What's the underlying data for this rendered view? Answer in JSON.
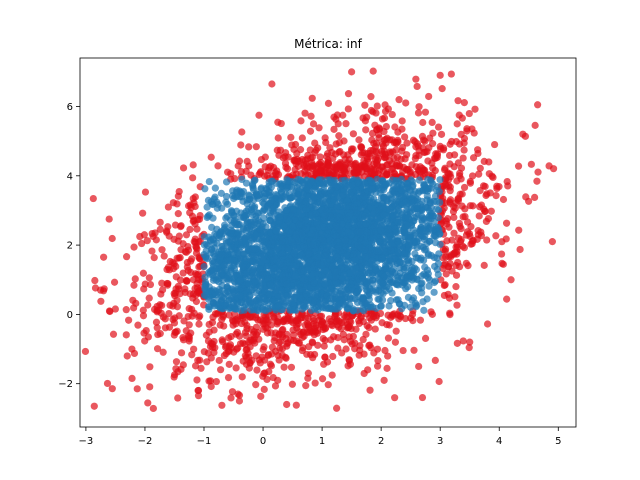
{
  "chart_data": {
    "type": "scatter",
    "title": "Métrica: inf",
    "xlabel": "",
    "ylabel": "",
    "xlim": [
      -3.1,
      5.3
    ],
    "ylim": [
      -3.25,
      7.4
    ],
    "x_ticks": [
      -3,
      -2,
      -1,
      0,
      1,
      2,
      3,
      4,
      5
    ],
    "y_ticks": [
      -2,
      0,
      2,
      4,
      6
    ],
    "x_tick_labels": [
      "−3",
      "−2",
      "−1",
      "0",
      "1",
      "2",
      "3",
      "4",
      "5"
    ],
    "y_tick_labels": [
      "−2",
      "0",
      "2",
      "4",
      "6"
    ],
    "grid": false,
    "legend": "none",
    "distribution": {
      "kind": "bivariate_normal",
      "mean": [
        1.0,
        2.0
      ],
      "std": [
        1.2,
        1.5
      ],
      "correlation": 0.35,
      "n_points": 5000
    },
    "series": [
      {
        "role": "inside_region",
        "color": "#1f77b4",
        "opacity": 0.7,
        "region": {
          "metric": "inf",
          "center": [
            1.0,
            2.0
          ],
          "radius_x": 2.0,
          "radius_y": 1.9
        }
      },
      {
        "role": "outside_region",
        "color": "#e0101a",
        "opacity": 0.7
      }
    ],
    "outliers": [
      {
        "x": -2.7,
        "y": 1.65
      },
      {
        "x": -2.6,
        "y": 0.1
      },
      {
        "x": 4.9,
        "y": 2.1
      },
      {
        "x": 4.65,
        "y": 6.05
      },
      {
        "x": 1.5,
        "y": 7.0
      },
      {
        "x": 3.0,
        "y": 6.9
      },
      {
        "x": 0.15,
        "y": 6.65
      },
      {
        "x": -0.4,
        "y": -2.5
      },
      {
        "x": 0.4,
        "y": -2.6
      },
      {
        "x": 2.7,
        "y": -2.4
      },
      {
        "x": -1.1,
        "y": -2.2
      },
      {
        "x": 4.2,
        "y": 1.0
      },
      {
        "x": -2.3,
        "y": -1.2
      },
      {
        "x": 3.5,
        "y": -0.8
      },
      {
        "x": 4.4,
        "y": 5.2
      }
    ]
  }
}
